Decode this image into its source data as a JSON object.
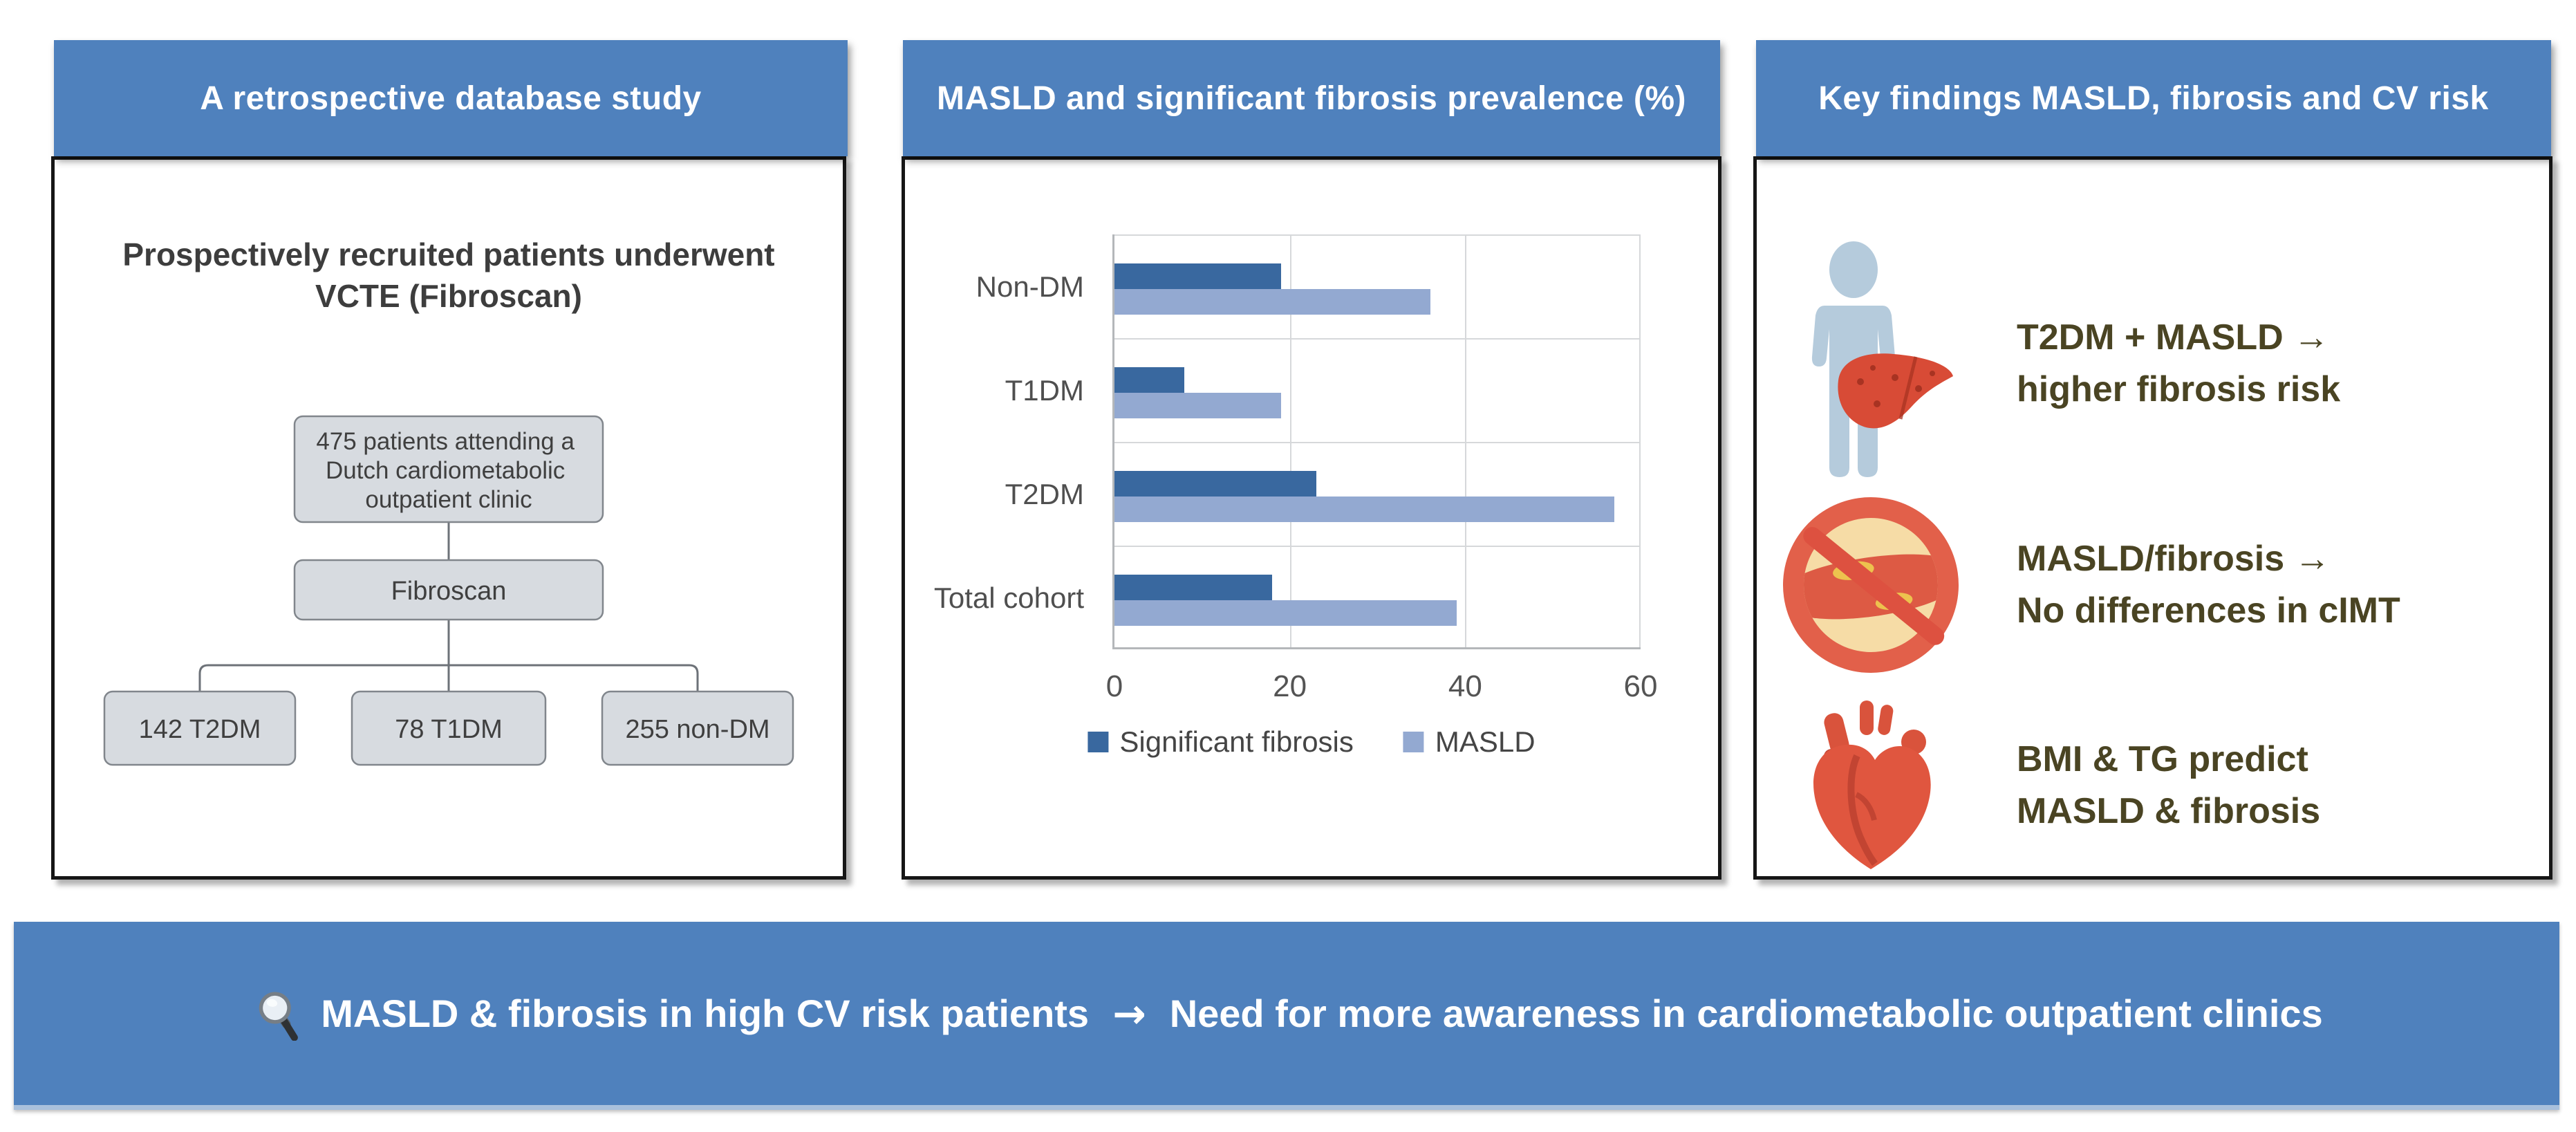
{
  "panels": {
    "study": {
      "title": "A retrospective database study",
      "intro_line1": "Prospectively recruited patients underwent",
      "intro_line2": "VCTE (Fibroscan)",
      "flow": {
        "box1_line1": "475 patients attending a",
        "box1_line2": "Dutch cardiometabolic",
        "box1_line3": "outpatient clinic",
        "box2": "Fibroscan",
        "child1": "142 T2DM",
        "child2": "78 T1DM",
        "child3": "255 non-DM"
      }
    },
    "chart": {
      "title": "MASLD and significant fibrosis prevalence (%)"
    },
    "findings": {
      "title": "Key findings MASLD, fibrosis and CV risk",
      "items": [
        {
          "icon": "person-liver-icon",
          "line1": "T2DM + MASLD →",
          "line2": "higher fibrosis risk"
        },
        {
          "icon": "no-cimt-artery-icon",
          "line1": "MASLD/fibrosis →",
          "line2": "No differences in cIMT"
        },
        {
          "icon": "heart-icon",
          "line1": "BMI & TG predict",
          "line2": "MASLD & fibrosis"
        }
      ]
    }
  },
  "banner": {
    "icon": "magnifier-icon",
    "text_part1": "MASLD & fibrosis in high CV risk patients",
    "arrow": "→",
    "text_part2": "Need for more awareness in cardiometabolic outpatient clinics"
  },
  "chart_data": {
    "type": "bar",
    "orientation": "horizontal",
    "title": "MASLD and significant fibrosis prevalence (%)",
    "categories": [
      "Non-DM",
      "T1DM",
      "T2DM",
      "Total cohort"
    ],
    "series": [
      {
        "name": "Significant fibrosis",
        "color": "#39689f",
        "values": [
          19,
          8,
          23,
          18
        ]
      },
      {
        "name": "MASLD",
        "color": "#93a9d1",
        "values": [
          36,
          19,
          57,
          39
        ]
      }
    ],
    "xlabel": "",
    "ylabel": "",
    "xlim": [
      0,
      60
    ],
    "xticks": [
      0,
      20,
      40,
      60
    ],
    "grid": true,
    "legend_position": "bottom"
  },
  "colors": {
    "panel_header_blue": "#4f81bd",
    "banner_blue": "#4f81bd",
    "flow_box_fill": "#d7dbe0",
    "findings_text_olive": "#4a4423",
    "icon_red": "#df5742",
    "person_icon_blue": "#b5cbdc",
    "bar_dark": "#39689f",
    "bar_light": "#93a9d1"
  }
}
